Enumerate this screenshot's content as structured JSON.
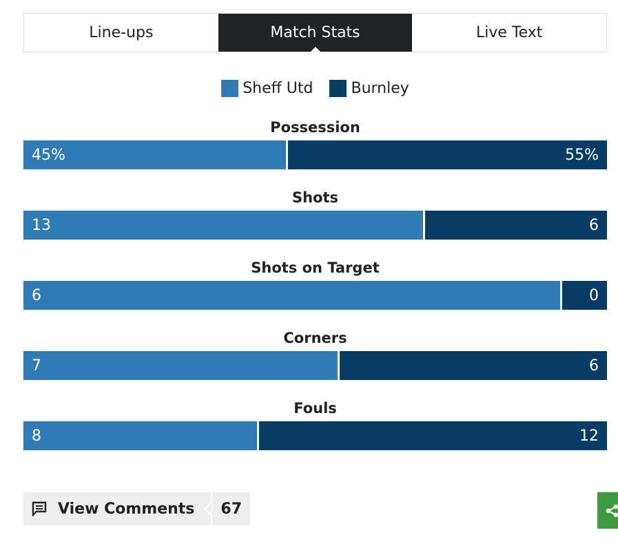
{
  "tabs": [
    {
      "label": "Line-ups",
      "active": false
    },
    {
      "label": "Match Stats",
      "active": true
    },
    {
      "label": "Live Text",
      "active": false
    }
  ],
  "legend": {
    "home": {
      "label": "Sheff Utd",
      "color": "#2e7bb6"
    },
    "away": {
      "label": "Burnley",
      "color": "#083c64"
    }
  },
  "stats": [
    {
      "title": "Possession",
      "home": "45%",
      "away": "55%",
      "home_value": 45,
      "away_value": 55
    },
    {
      "title": "Shots",
      "home": "13",
      "away": "6",
      "home_value": 13,
      "away_value": 6
    },
    {
      "title": "Shots on Target",
      "home": "6",
      "away": "0",
      "home_value": 6,
      "away_value": 0
    },
    {
      "title": "Corners",
      "home": "7",
      "away": "6",
      "home_value": 7,
      "away_value": 6
    },
    {
      "title": "Fouls",
      "home": "8",
      "away": "12",
      "home_value": 8,
      "away_value": 12
    }
  ],
  "comments": {
    "label": "View Comments",
    "count": "67",
    "icon": "comment-icon"
  },
  "share": {
    "icon": "share-icon",
    "color": "#3f9a3f"
  }
}
